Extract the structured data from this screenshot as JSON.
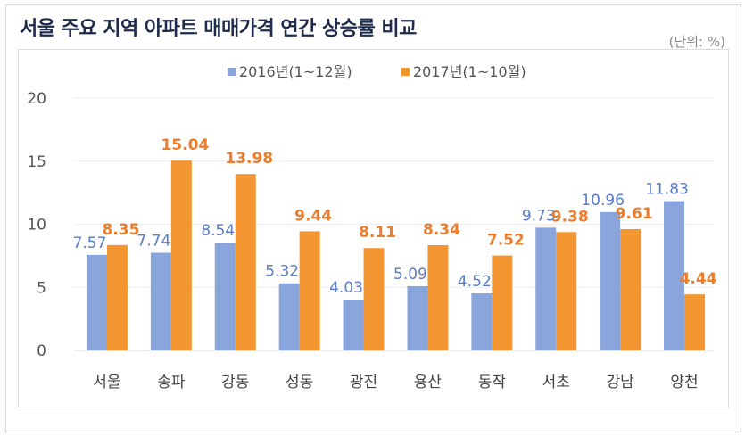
{
  "chart_data": {
    "type": "bar",
    "title": "서울 주요 지역 아파트 매매가격 연간 상승률 비교",
    "unit_note": "(단위: %)",
    "categories": [
      "서울",
      "송파",
      "강동",
      "성동",
      "광진",
      "용산",
      "동작",
      "서초",
      "강남",
      "양천"
    ],
    "series": [
      {
        "name": "2016년(1~12월)",
        "color": "#8aa5db",
        "label_color": "#5b7bc8",
        "values": [
          7.57,
          7.74,
          8.54,
          5.32,
          4.03,
          5.09,
          4.52,
          9.73,
          10.96,
          11.83
        ]
      },
      {
        "name": "2017년(1~10월)",
        "color": "#f39531",
        "label_color": "#ec7d2c",
        "values": [
          8.35,
          15.04,
          13.98,
          9.44,
          8.11,
          8.34,
          7.52,
          9.38,
          9.61,
          4.44
        ]
      }
    ],
    "ylim": [
      0,
      20
    ],
    "yticks": [
      0,
      5,
      10,
      15,
      20
    ],
    "grid": true,
    "legend": "top-center",
    "xlabel": "",
    "ylabel": ""
  }
}
